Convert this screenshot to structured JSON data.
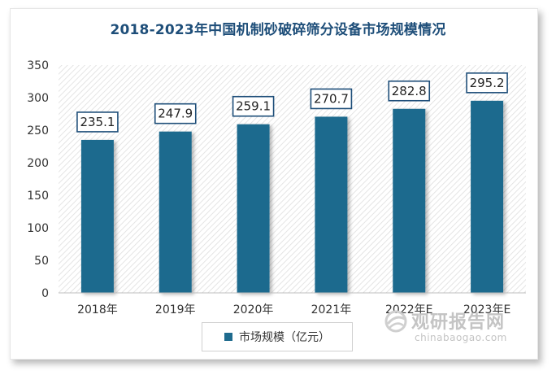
{
  "chart_data": {
    "type": "bar",
    "title": "2018-2023年中国机制砂破碎筛分设备市场规模情况",
    "categories": [
      "2018年",
      "2019年",
      "2020年",
      "2021年",
      "2022年E",
      "2023年E"
    ],
    "series": [
      {
        "name": "市场规模（亿元）",
        "values": [
          235.1,
          247.9,
          259.1,
          270.7,
          282.8,
          295.2
        ]
      }
    ],
    "data_labels": [
      "235.1",
      "247.9",
      "259.1",
      "270.7",
      "282.8",
      "295.2"
    ],
    "ylim": [
      0,
      350
    ],
    "yticks": [
      0,
      50,
      100,
      150,
      200,
      250,
      300,
      350
    ],
    "xlabel": "",
    "ylabel": "",
    "grid": false,
    "legend_position": "bottom",
    "bar_color": "#1f6b8e",
    "label_border_color": "#1e4e79"
  },
  "watermark": {
    "brand_cn": "观研报告网",
    "brand_en": "chinabaogao.com",
    "icon": "globe-logo-icon"
  }
}
